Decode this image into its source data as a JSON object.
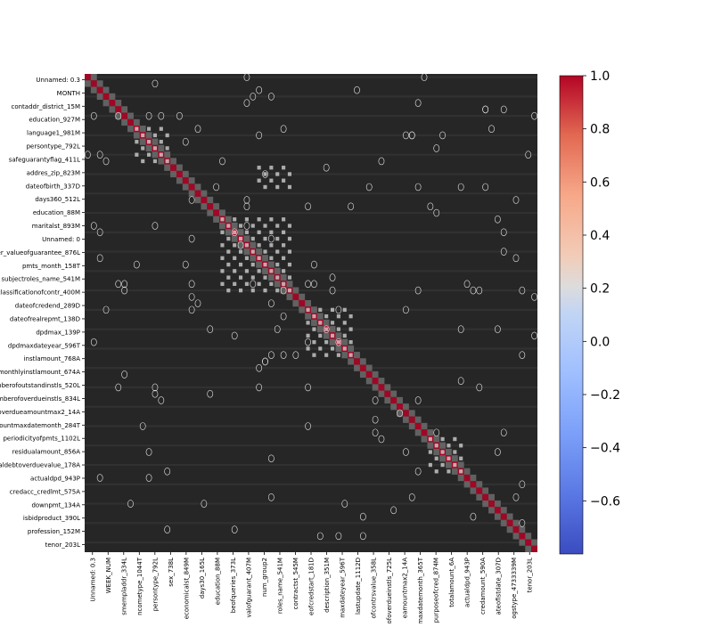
{
  "chart_data": {
    "type": "heatmap",
    "title": "",
    "xlabel": "",
    "ylabel": "",
    "annotated": true,
    "row_labels": [
      "Unnamed: 0.3",
      "MONTH",
      "contaddr_district_15M",
      "education_927M",
      "language1_981M",
      "persontype_792L",
      "safeguarantyflag_411L",
      "addres_zip_823M",
      "dateofbirth_337D",
      "days360_512L",
      "education_88M",
      "maritalst_893M",
      "Unnamed: 0",
      "er_valueofguarantee_876L",
      "pmts_month_158T",
      "subjectroles_name_541M",
      "classificationofcontr_400M",
      "dateofcredend_289D",
      "dateofrealrepmt_138D",
      "dpdmax_139P",
      "dpdmaxdateyear_596T",
      "instlamount_768A",
      "monthlyinstlamount_674A",
      "mberofoutstandinstls_520L",
      "mberofoverdueinstls_834L",
      "overdueamountmax2_14A",
      "ountmaxdatemonth_284T",
      "periodicityofpmts_1102L",
      "residualamount_856A",
      "aldebtoverduevalue_178A",
      "actualdpd_943P",
      "credacc_credlmt_575A",
      "downpmt_134A",
      "isbidproduct_390L",
      "profession_152M",
      "tenor_203L"
    ],
    "col_labels": [
      "Unnamed: 0.3",
      "WEEK_NUM",
      "smempladdr_334L",
      "ncometype_1044T",
      "persontype_792L",
      "sex_738L",
      "economicalst_849M",
      "days30_165L",
      "education_88M",
      "beofqueries_373L",
      "valofguarant_407M",
      "num_group2",
      "roles_name_541M",
      "contractst_545M",
      "eofcredstart_181D",
      "description_351M",
      "maxdateyear_596T",
      "lastupdate_1112D",
      "ofcontrsvalue_358L",
      "ofoverdueinstls_725L",
      "eamountmax2_14A",
      "maxdatemonth_365T",
      "purposeofcred_874M",
      "totalamount_6A",
      "actualdpd_943P",
      "credamount_590A",
      "ateofistdate_307D",
      "ogstype_4733339M",
      "tenor_203L"
    ],
    "colorbar": {
      "colormap": "coolwarm",
      "min": -0.8,
      "max": 1.0,
      "ticks": [
        1.0,
        0.8,
        0.6,
        0.4,
        0.2,
        0.0,
        -0.2,
        -0.4,
        -0.6
      ],
      "tick_labels": [
        "1.0",
        "0.8",
        "0.6",
        "0.4",
        "0.2",
        "0.0",
        "−0.2",
        "−0.4",
        "−0.6"
      ]
    }
  }
}
